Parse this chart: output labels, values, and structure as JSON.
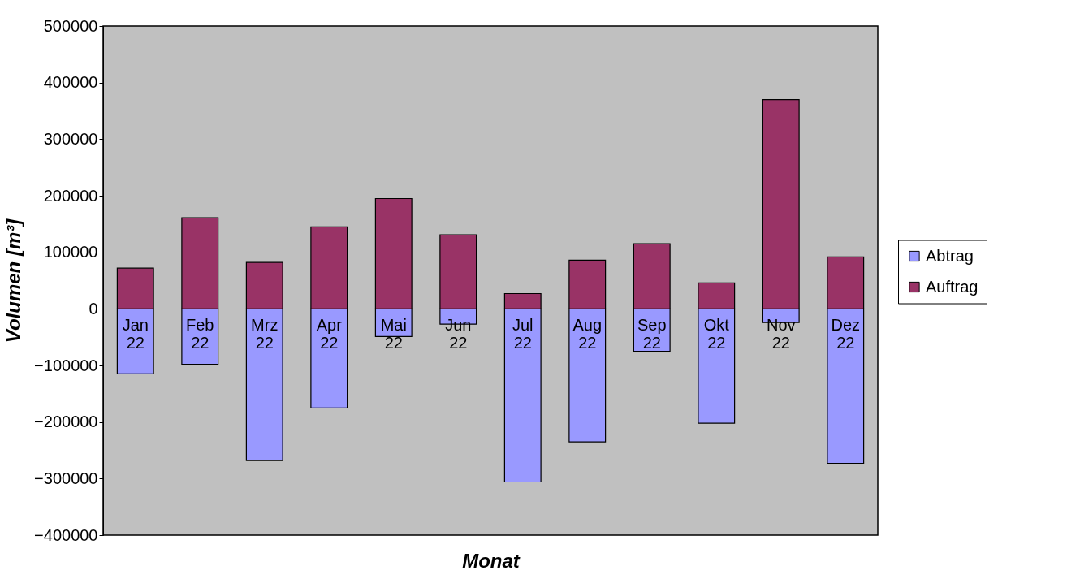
{
  "chart_data": {
    "type": "bar",
    "xlabel": "Monat",
    "ylabel": "Volumen [m³]",
    "categories": [
      "Jan 22",
      "Feb 22",
      "Mrz 22",
      "Apr 22",
      "Mai 22",
      "Jun 22",
      "Jul 22",
      "Aug 22",
      "Sep 22",
      "Okt 22",
      "Nov 22",
      "Dez 22"
    ],
    "series": [
      {
        "name": "Abtrag",
        "color": "#9999ff",
        "values": [
          -115000,
          -98000,
          -268000,
          -175000,
          -49000,
          -27000,
          -306000,
          -235000,
          -75000,
          -202000,
          -24000,
          -273000
        ]
      },
      {
        "name": "Auftrag",
        "color": "#993366",
        "values": [
          72000,
          161000,
          82000,
          145000,
          195000,
          131000,
          27000,
          86000,
          115000,
          46000,
          370000,
          92000
        ]
      }
    ],
    "stacked": true,
    "ylim": [
      -400000,
      500000
    ],
    "yticks": [
      -400000,
      -300000,
      -200000,
      -100000,
      0,
      100000,
      200000,
      300000,
      400000,
      500000
    ],
    "grid": false,
    "legend": "right"
  }
}
